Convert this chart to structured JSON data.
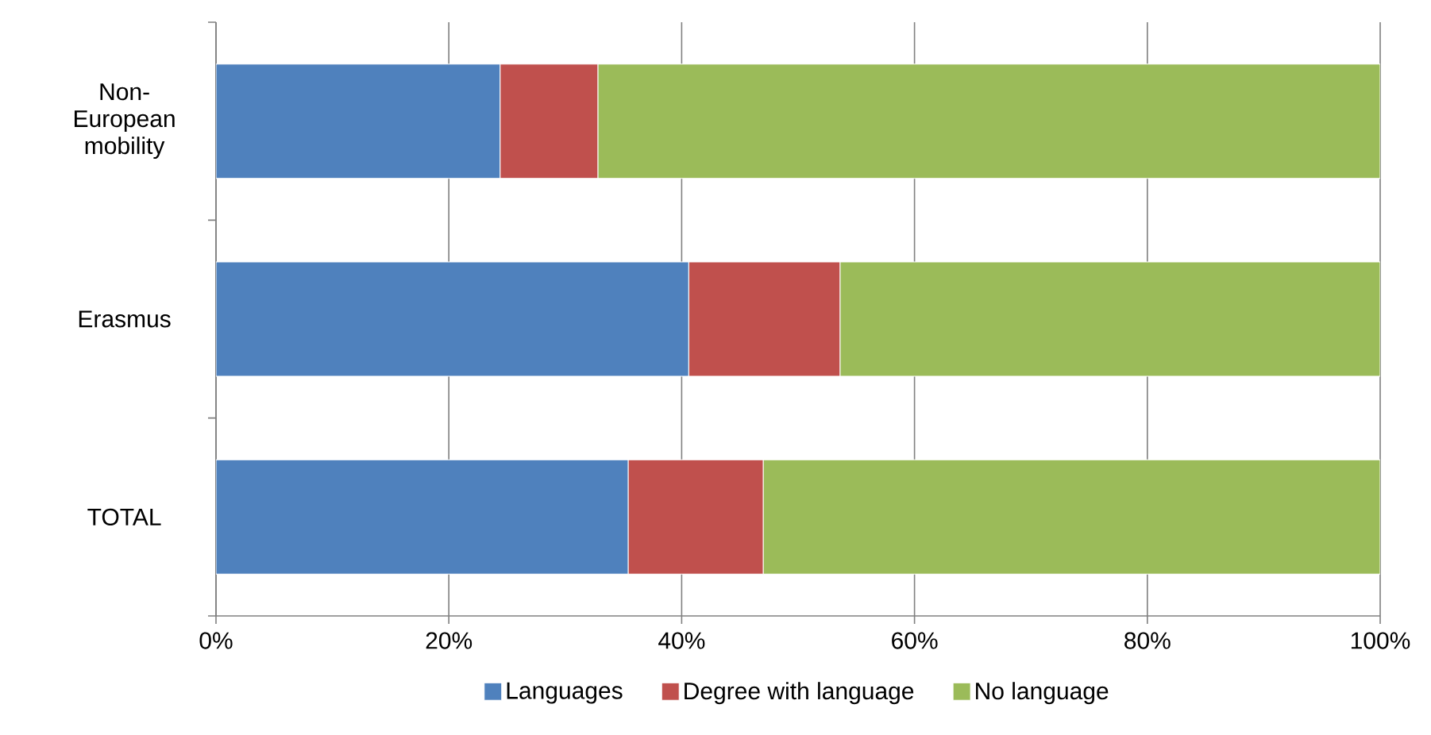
{
  "chart_data": {
    "type": "bar",
    "orientation": "horizontal",
    "stacked": true,
    "categories": [
      "Non-European mobility",
      "Erasmus",
      "TOTAL"
    ],
    "series": [
      {
        "name": "Languages",
        "color": "#4f81bd",
        "values": [
          24.4,
          40.6,
          35.4
        ]
      },
      {
        "name": "Degree with language",
        "color": "#c0504d",
        "values": [
          8.4,
          13.0,
          11.6
        ]
      },
      {
        "name": "No language",
        "color": "#9bbb59",
        "values": [
          67.2,
          46.4,
          53.0
        ]
      }
    ],
    "xlim": [
      0,
      100
    ],
    "xticks": [
      {
        "value": 0,
        "label": "0%"
      },
      {
        "value": 20,
        "label": "20%"
      },
      {
        "value": 40,
        "label": "40%"
      },
      {
        "value": 60,
        "label": "60%"
      },
      {
        "value": 80,
        "label": "80%"
      },
      {
        "value": 100,
        "label": "100%"
      }
    ],
    "grid": "x",
    "legend": "bottom"
  }
}
